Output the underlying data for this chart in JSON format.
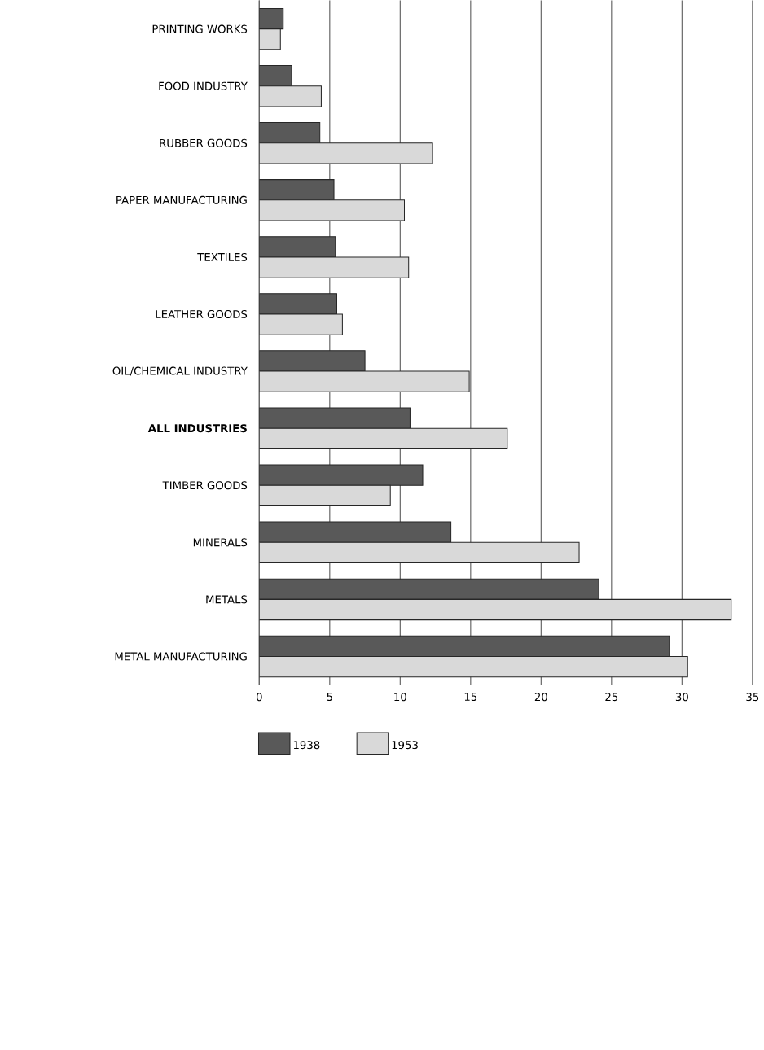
{
  "chart_data": {
    "type": "bar",
    "orientation": "horizontal",
    "categories": [
      "PRINTING WORKS",
      "FOOD INDUSTRY",
      "RUBBER GOODS",
      "PAPER MANUFACTURING",
      "TEXTILES",
      "LEATHER GOODS",
      "OIL/CHEMICAL INDUSTRY",
      "**ALL INDUSTRIES**",
      "TIMBER GOODS",
      "MINERALS",
      "METALS",
      "METAL MANUFACTURING"
    ],
    "series": [
      {
        "name": "1938",
        "color": "#595959",
        "values": [
          1.7,
          2.3,
          4.3,
          5.3,
          5.4,
          5.5,
          7.5,
          10.7,
          11.6,
          13.6,
          24.1,
          29.1
        ]
      },
      {
        "name": "1953",
        "color": "#d9d9d9",
        "values": [
          1.5,
          4.4,
          12.3,
          10.3,
          10.6,
          5.9,
          14.9,
          17.6,
          9.3,
          22.7,
          33.5,
          30.4
        ]
      }
    ],
    "xlim": [
      0,
      35
    ],
    "xticks": [
      0,
      5,
      10,
      15,
      20,
      25,
      30,
      35
    ],
    "grid": "x",
    "legend": "bottom"
  }
}
